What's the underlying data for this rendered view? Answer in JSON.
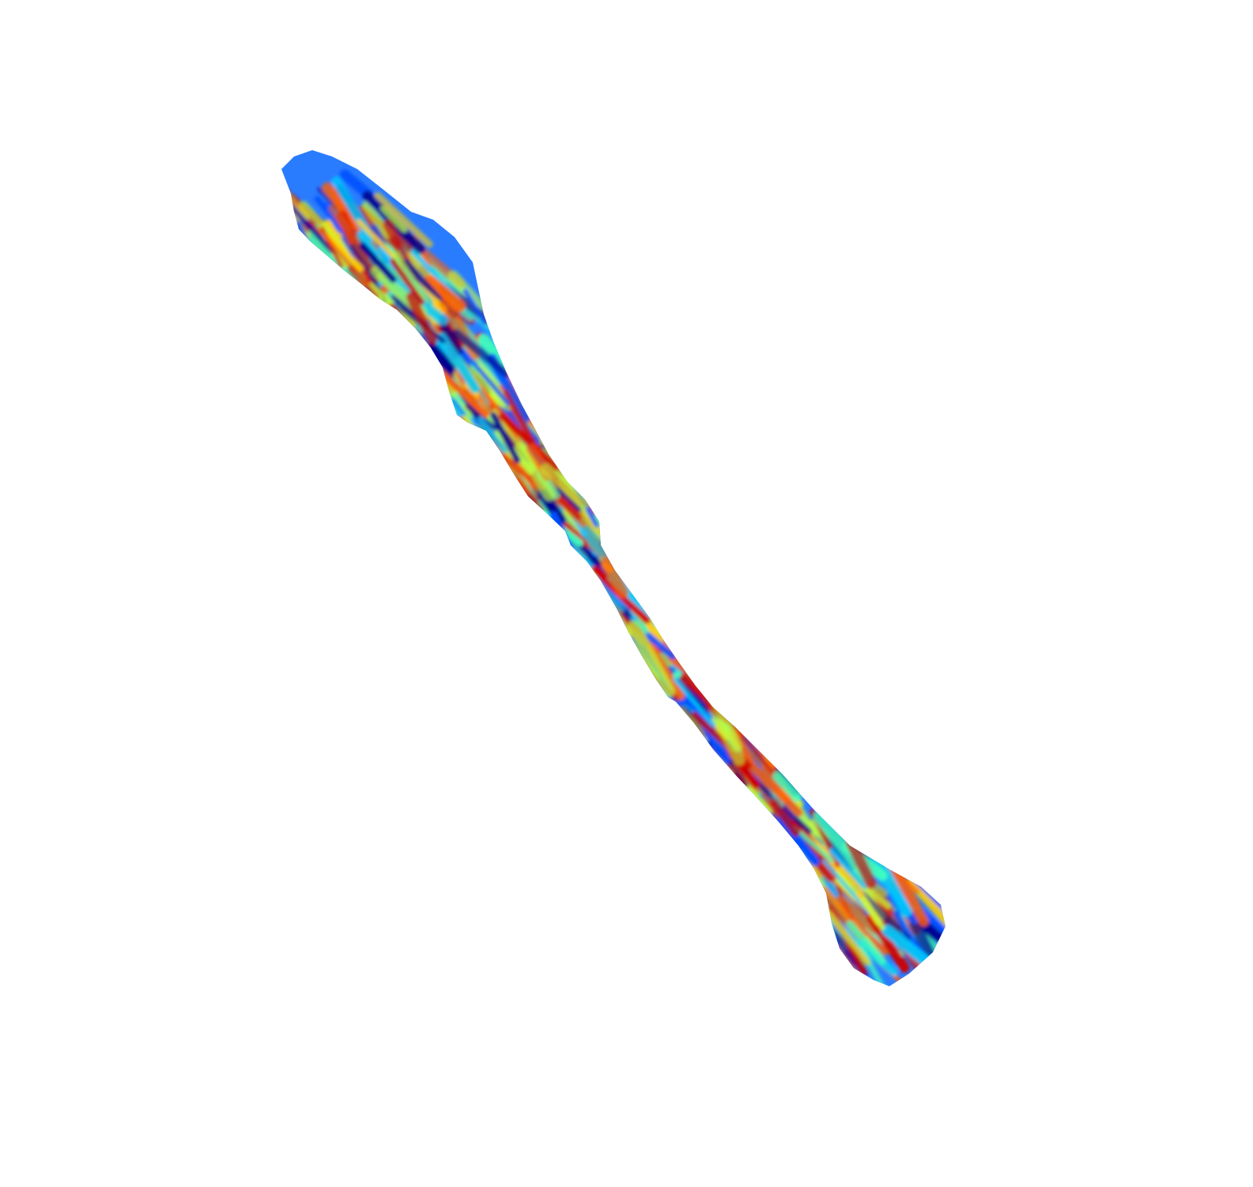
{
  "figure": {
    "subject": "3d-surface-bundle",
    "colormap": "jet",
    "colormap_stops": [
      "#00008f",
      "#0050ff",
      "#00c8ff",
      "#40ffbf",
      "#c0ff40",
      "#ffd000",
      "#ff6000",
      "#d00000"
    ],
    "background": "#ffffff"
  }
}
